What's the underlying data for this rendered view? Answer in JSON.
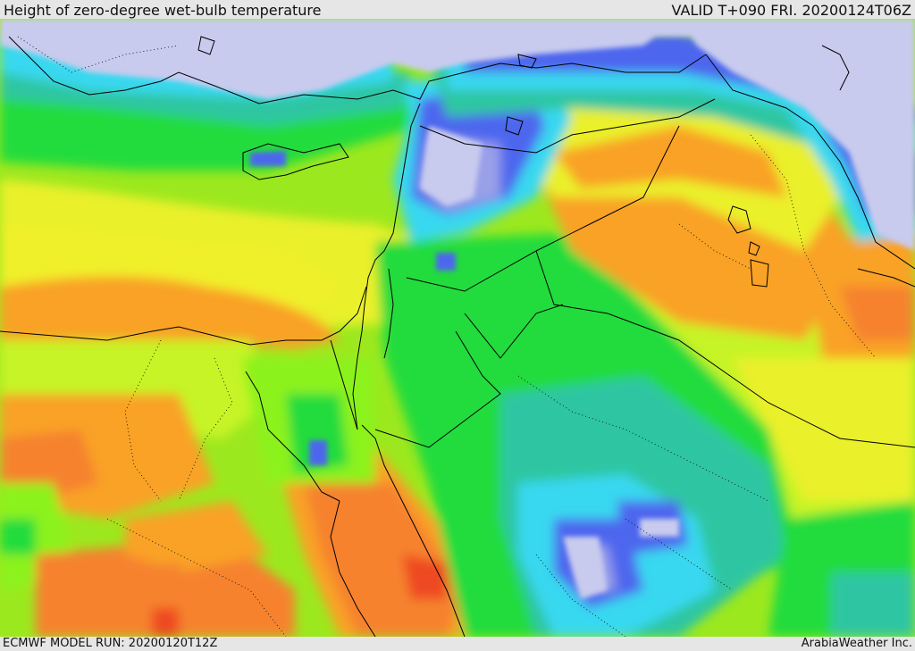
{
  "header": {
    "title": "Height of zero-degree wet-bulb temperature",
    "valid_time": "VALID T+090 FRI. 20200124T06Z"
  },
  "footer": {
    "model_run": "ECMWF MODEL RUN: 20200120T12Z",
    "credit": "ArabiaWeather Inc."
  },
  "map": {
    "region": "Eastern Mediterranean and Middle East",
    "palette": {
      "lowest": "#c8cbee",
      "very_low": "#9aa0e8",
      "low_blue": "#4e66ee",
      "cyan": "#38d8f0",
      "teal": "#2ec6a2",
      "green": "#22dc3c",
      "light_green": "#8cf21e",
      "yellow_green": "#c6f428",
      "yellow": "#eaf02a",
      "light_orange": "#f7c828",
      "orange": "#f9a226",
      "dark_orange": "#f6822e",
      "red": "#ee4a22"
    }
  }
}
